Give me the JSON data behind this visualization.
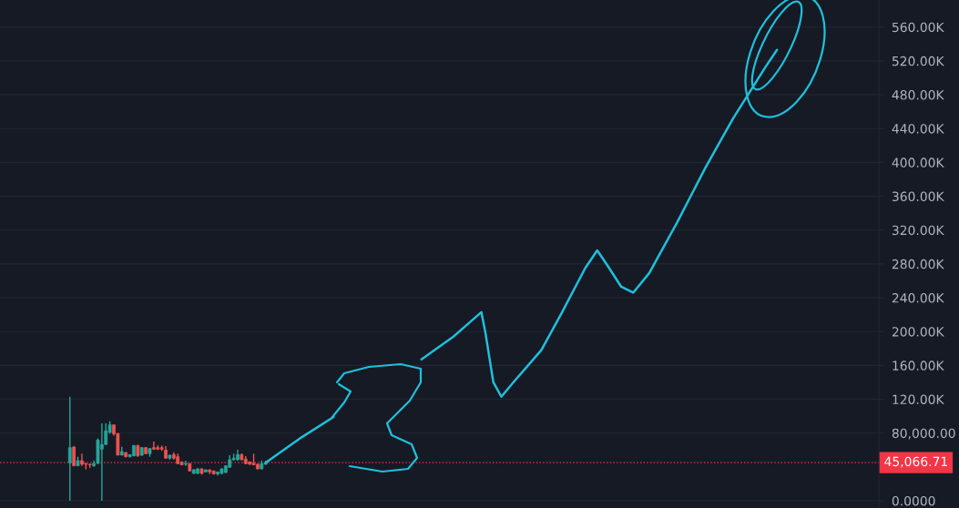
{
  "chart_data": {
    "type": "candlestick",
    "categories": [
      null,
      null,
      null,
      null,
      null,
      null,
      null,
      null,
      null,
      null,
      null,
      null,
      null,
      null,
      null,
      null,
      null,
      null,
      null,
      null,
      null,
      null,
      null,
      null,
      null,
      null,
      null,
      null,
      null,
      null,
      null,
      null,
      null,
      null,
      null,
      null,
      null,
      null,
      null,
      null,
      null,
      null,
      null,
      null,
      null,
      null,
      null,
      null,
      null,
      null,
      null,
      null,
      null,
      null,
      null,
      null,
      null,
      null,
      null,
      null,
      null,
      null,
      null,
      null,
      null,
      null,
      null,
      null,
      null,
      null,
      null,
      null,
      null,
      null,
      null,
      null,
      null,
      null,
      null,
      null,
      null,
      null,
      null,
      null,
      null,
      null,
      null,
      null,
      null,
      null,
      null,
      null,
      null,
      null,
      null,
      null,
      null,
      null,
      null,
      null,
      null,
      null,
      null,
      null,
      null,
      null,
      null,
      null,
      null,
      null,
      null,
      null,
      null,
      null,
      null,
      null,
      null,
      null,
      null,
      null,
      null,
      null,
      null,
      null,
      null,
      null,
      null,
      null,
      null,
      null,
      null,
      null,
      null,
      null,
      null,
      null,
      null,
      null,
      null,
      null,
      null,
      null,
      null,
      null,
      null,
      null,
      null,
      null,
      null,
      null,
      null,
      null,
      null,
      null,
      null,
      null,
      null,
      null,
      null,
      null,
      null,
      null,
      null,
      null,
      null,
      null,
      null,
      null,
      null,
      null,
      null,
      null,
      null,
      null,
      null,
      null,
      null,
      null,
      null,
      null,
      null,
      null,
      null,
      null,
      null,
      null,
      null,
      null,
      null,
      null,
      null,
      null,
      null,
      null,
      null,
      null,
      null,
      null,
      null,
      null,
      null,
      null,
      null,
      null,
      null,
      null,
      null,
      null,
      null,
      null,
      null,
      null,
      null,
      null,
      null,
      null,
      null,
      null,
      null,
      null
    ],
    "ohlc": [
      null,
      null,
      null,
      null,
      null,
      null,
      null,
      null,
      null,
      null,
      null,
      null,
      null,
      null,
      null,
      null,
      null,
      [
        44900,
        123000,
        0,
        62800
      ],
      [
        63500,
        64500,
        41300,
        41300
      ],
      [
        41300,
        52000,
        41300,
        47400
      ],
      [
        47400,
        55600,
        41300,
        43100
      ],
      [
        44000,
        44500,
        37000,
        43100
      ],
      [
        43100,
        43800,
        38800,
        42400
      ],
      [
        41300,
        47700,
        40200,
        44100
      ],
      [
        44100,
        73600,
        43400,
        71800
      ],
      [
        61000,
        91500,
        0,
        66400
      ],
      [
        66400,
        91500,
        66400,
        82600
      ],
      [
        80800,
        94000,
        79000,
        89700
      ],
      [
        89700,
        90000,
        77000,
        79000
      ],
      [
        79500,
        80000,
        53800,
        53800
      ],
      [
        53800,
        63900,
        53800,
        58200
      ],
      [
        57000,
        57500,
        51500,
        52000
      ],
      [
        52000,
        55000,
        51000,
        54500
      ],
      [
        53100,
        66000,
        52500,
        65300
      ],
      [
        65300,
        66000,
        52000,
        53100
      ],
      [
        53800,
        63500,
        53000,
        62800
      ],
      [
        62800,
        63500,
        55000,
        55600
      ],
      [
        55600,
        62300,
        52000,
        61700
      ],
      [
        62800,
        70000,
        59900,
        61000
      ],
      [
        62800,
        65300,
        59900,
        61000
      ],
      [
        62800,
        65300,
        58900,
        61000
      ],
      [
        59900,
        64500,
        49600,
        50300
      ],
      [
        50300,
        54500,
        48500,
        53800
      ],
      [
        54500,
        57400,
        48500,
        50300
      ],
      [
        52000,
        55600,
        43100,
        43800
      ],
      [
        45900,
        46500,
        42000,
        42400
      ],
      [
        43100,
        47400,
        41300,
        43800
      ],
      [
        43800,
        44500,
        34500,
        35200
      ],
      [
        32300,
        37300,
        31500,
        36600
      ],
      [
        32300,
        38400,
        31600,
        37700
      ],
      [
        37700,
        38400,
        30900,
        32300
      ],
      [
        34100,
        37000,
        33500,
        36600
      ],
      [
        36600,
        37000,
        31600,
        34100
      ],
      [
        35200,
        35800,
        31000,
        31600
      ],
      [
        31600,
        34500,
        30000,
        34100
      ],
      [
        32300,
        38400,
        31000,
        37700
      ],
      [
        33400,
        42000,
        32700,
        41300
      ],
      [
        39500,
        53800,
        39000,
        48500
      ],
      [
        48500,
        55600,
        47400,
        50300
      ],
      [
        48500,
        60300,
        47400,
        54500
      ],
      [
        54500,
        56000,
        47400,
        48500
      ],
      [
        49300,
        52700,
        43100,
        43800
      ],
      [
        45900,
        46500,
        42400,
        43100
      ],
      [
        44100,
        55600,
        42000,
        42400
      ],
      [
        43100,
        43800,
        37000,
        37700
      ],
      [
        37700,
        47400,
        37000,
        43800
      ],
      [
        43100,
        47400,
        42400,
        45066.71
      ],
      null,
      null,
      null,
      null,
      null,
      null,
      null,
      null,
      null,
      null,
      null,
      null,
      null,
      null,
      null,
      null,
      null,
      null,
      null,
      null,
      null,
      null,
      null,
      null,
      null,
      null,
      null,
      null,
      null,
      null,
      null,
      null,
      null,
      null,
      null,
      null,
      null,
      null,
      null,
      null,
      null,
      null,
      null,
      null,
      null,
      null,
      null,
      null,
      null,
      null,
      null,
      null,
      null,
      null,
      null,
      null,
      null,
      null,
      null,
      null,
      null,
      null,
      null,
      null,
      null,
      null,
      null,
      null,
      null,
      null,
      null,
      null,
      null,
      null,
      null,
      null,
      null,
      null,
      null,
      null,
      null,
      null,
      null,
      null,
      null,
      null,
      null,
      null,
      null,
      null,
      null,
      null,
      null,
      null,
      null,
      null,
      null,
      null,
      null,
      null,
      null,
      null,
      null,
      null,
      null,
      null,
      null,
      null,
      null,
      null,
      null,
      null,
      null,
      null,
      null,
      null,
      null,
      null,
      null,
      null,
      null,
      null,
      null,
      null,
      null,
      null,
      null,
      null,
      null,
      null,
      null,
      null,
      null,
      null,
      null,
      null,
      null,
      null,
      null,
      null,
      null,
      null,
      null,
      null,
      null,
      null,
      null,
      null,
      null,
      null,
      null,
      null,
      null
    ],
    "colors": [
      null,
      null,
      null,
      null,
      null,
      null,
      null,
      null,
      null,
      null,
      null,
      null,
      null,
      null,
      null,
      null,
      null,
      "#26a69a",
      "#ef5350",
      "#26a69a",
      "#ef5350",
      "#ef5350",
      "#ef5350",
      "#26a69a",
      "#26a69a",
      "#26a69a",
      "#26a69a",
      "#26a69a",
      "#ef5350",
      "#ef5350",
      "#26a69a",
      "#ef5350",
      "#26a69a",
      "#26a69a",
      "#ef5350",
      "#26a69a",
      "#ef5350",
      "#26a69a",
      "#ef5350",
      "#ef5350",
      "#ef5350",
      "#ef5350",
      "#26a69a",
      "#ef5350",
      "#ef5350",
      "#ef5350",
      "#26a69a",
      "#ef5350",
      "#26a69a",
      "#26a69a",
      "#ef5350",
      "#26a69a",
      "#ef5350",
      "#ef5350",
      "#26a69a",
      "#26a69a",
      "#26a69a",
      "#26a69a",
      "#26a69a",
      "#26a69a",
      "#ef5350",
      "#ef5350",
      "#ef5350",
      "#ef5350",
      "#ef5350",
      "#26a69a",
      "#26a69a",
      null,
      null,
      null,
      null,
      null,
      null,
      null,
      null,
      null,
      null,
      null,
      null,
      null,
      null,
      null,
      null,
      null,
      null,
      null,
      null,
      null,
      null,
      null,
      null,
      null,
      null,
      null,
      null,
      null,
      null,
      null,
      null,
      null,
      null,
      null,
      null,
      null,
      null,
      null,
      null,
      null,
      null,
      null,
      null,
      null,
      null,
      null,
      null,
      null,
      null,
      null,
      null,
      null,
      null,
      null,
      null,
      null,
      null,
      null,
      null,
      null,
      null,
      null,
      null,
      null,
      null,
      null,
      null,
      null,
      null,
      null,
      null,
      null,
      null,
      null,
      null,
      null,
      null,
      null,
      null,
      null,
      null,
      null,
      null,
      null,
      null,
      null,
      null,
      null,
      null,
      null,
      null,
      null,
      null,
      null,
      null,
      null,
      null,
      null,
      null,
      null,
      null,
      null,
      null,
      null,
      null,
      null,
      null,
      null,
      null,
      null,
      null,
      null,
      null,
      null,
      null,
      null,
      null,
      null,
      null,
      null,
      null,
      null,
      null,
      null,
      null,
      null,
      null,
      null,
      null,
      null,
      null,
      null,
      null,
      null,
      null,
      null,
      null,
      null,
      null,
      null,
      null,
      null,
      null,
      null,
      null,
      null,
      null,
      null,
      null,
      null,
      null,
      null
    ],
    "series": [
      {
        "type": "line",
        "color": "#1fc0dc",
        "values": [
          null,
          null,
          null,
          null,
          null,
          null,
          null,
          null,
          null,
          null,
          null,
          null,
          null,
          null,
          null,
          null,
          null,
          null,
          null,
          null,
          null,
          null,
          null,
          null,
          null,
          null,
          null,
          null,
          null,
          null,
          null,
          null,
          null,
          null,
          null,
          null,
          null,
          null,
          null,
          null,
          null,
          null,
          null,
          null,
          null,
          null,
          null,
          null,
          null,
          null,
          null,
          null,
          null,
          null,
          null,
          null,
          null,
          null,
          null,
          null,
          null,
          null,
          null,
          null,
          null,
          null,
          45000,
          null,
          null,
          null,
          null,
          null,
          null,
          null,
          null,
          75000,
          null,
          null,
          null,
          null,
          null,
          null,
          null,
          99000,
          null,
          null,
          null,
          null,
          null,
          null,
          null,
          null,
          null,
          null,
          null,
          null,
          null,
          null,
          null,
          null,
          null,
          null,
          null,
          null,
          null,
          null,
          null,
          null,
          null,
          null,
          null,
          null,
          null,
          null,
          null,
          null,
          null,
          null,
          null,
          null,
          null,
          null,
          null,
          null,
          null,
          null,
          null,
          null,
          null,
          null,
          null,
          null,
          null,
          null,
          null,
          null,
          null,
          null,
          null,
          null,
          null,
          null,
          null,
          null,
          null,
          null,
          null,
          null,
          null,
          null,
          null,
          null,
          null,
          null,
          null,
          null,
          null,
          null,
          null,
          null,
          null,
          null,
          null,
          null,
          null,
          null,
          null,
          null,
          null,
          null,
          null,
          null,
          null,
          null,
          null,
          null,
          null,
          null,
          null,
          null,
          null,
          null,
          null,
          null,
          null,
          null,
          null,
          null,
          null,
          null,
          null,
          null,
          null,
          null,
          null,
          null,
          null,
          null,
          null,
          null,
          null,
          null,
          null,
          null,
          null,
          null,
          null,
          null,
          null,
          null,
          null,
          null,
          null,
          null,
          null,
          null,
          null,
          null,
          null,
          null
        ]
      },
      {
        "type": "line",
        "color": "#1fc0dc",
        "values": [
          null,
          null,
          null,
          null,
          null,
          null,
          null,
          null,
          null,
          null,
          null,
          null,
          null,
          null,
          null,
          null,
          null,
          null,
          null,
          null,
          null,
          null,
          null,
          null,
          null,
          null,
          null,
          null,
          null,
          null,
          null,
          null,
          null,
          null,
          null,
          null,
          null,
          null,
          null,
          null,
          null,
          null,
          null,
          null,
          null,
          null,
          null,
          null,
          null,
          null,
          null,
          null,
          null,
          null,
          null,
          null,
          null,
          null,
          null,
          null,
          null,
          null,
          null,
          null,
          null,
          null,
          null,
          null,
          null,
          null,
          null,
          null,
          null,
          null,
          null,
          null,
          null,
          null,
          null,
          null,
          null,
          null,
          null,
          null,
          null,
          null,
          null,
          null,
          null,
          null,
          null,
          null,
          null,
          null,
          null,
          null,
          null,
          null,
          null,
          null,
          null,
          null,
          null,
          null,
          null,
          167000,
          null,
          null,
          null,
          null,
          null,
          null,
          null,
          194000,
          null,
          null,
          null,
          null,
          null,
          null,
          223000,
          199000,
          null,
          140000,
          null,
          123000,
          null,
          null,
          140000,
          null,
          null,
          null,
          null,
          null,
          null,
          178000,
          null,
          null,
          null,
          null,
          221000,
          null,
          null,
          null,
          null,
          null,
          275000,
          null,
          null,
          296000,
          null,
          null,
          275000,
          null,
          null,
          253000,
          null,
          null,
          246000,
          null,
          null,
          null,
          269000,
          null,
          null,
          null,
          null,
          null,
          null,
          329000,
          null,
          null,
          null,
          null,
          null,
          null,
          393000,
          null,
          null,
          null,
          null,
          null,
          null,
          452000,
          null,
          null,
          null,
          null,
          null,
          null,
          null,
          512000,
          null,
          null,
          533000,
          null,
          null,
          null,
          null,
          null,
          null,
          null,
          null,
          null,
          null,
          null,
          null,
          null,
          null,
          null,
          null,
          null,
          null,
          null,
          null,
          null,
          null,
          null,
          null,
          null
        ]
      }
    ],
    "ylim": [
      -8600,
      592000
    ],
    "yticks": [
      {
        "value": 0,
        "label": "0.0000"
      },
      {
        "value": 80000,
        "label": "80,000.00"
      },
      {
        "value": 120000,
        "label": "120.00K"
      },
      {
        "value": 160000,
        "label": "160.00K"
      },
      {
        "value": 200000,
        "label": "200.00K"
      },
      {
        "value": 240000,
        "label": "240.00K"
      },
      {
        "value": 280000,
        "label": "280.00K"
      },
      {
        "value": 320000,
        "label": "320.00K"
      },
      {
        "value": 360000,
        "label": "360.00K"
      },
      {
        "value": 400000,
        "label": "400.00K"
      },
      {
        "value": 440000,
        "label": "440.00K"
      },
      {
        "value": 480000,
        "label": "480.00K"
      },
      {
        "value": 520000,
        "label": "520.00K"
      },
      {
        "value": 560000,
        "label": "560.00K"
      }
    ],
    "ref_lines": [
      {
        "axis": "y",
        "value": 45066.71,
        "label": "45,066.71",
        "color": "#f23645",
        "line_style": "dotted"
      }
    ],
    "grid": "y",
    "tick_labels": "y"
  }
}
